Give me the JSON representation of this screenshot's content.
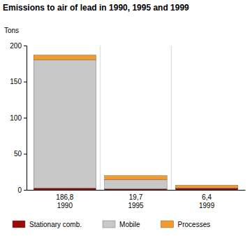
{
  "chart_data": {
    "type": "bar",
    "stacked": true,
    "title": "Emissions to air of lead in 1990, 1995 and 1999",
    "y_label": "Tons",
    "categories": [
      "1990",
      "1995",
      "1999"
    ],
    "total_labels": [
      "186,8",
      "19,7",
      "6,4"
    ],
    "series": [
      {
        "name": "Stationary comb.",
        "color": "#9b0a0a",
        "values": [
          2.5,
          1.5,
          2.0
        ]
      },
      {
        "name": "Mobile",
        "color": "#c8c8c8",
        "values": [
          177.5,
          12.5,
          0.5
        ]
      },
      {
        "name": "Processes",
        "color": "#f39a2c",
        "values": [
          6.8,
          5.7,
          3.9
        ]
      }
    ],
    "ylim": [
      0,
      200
    ],
    "yticks": [
      0,
      50,
      100,
      150,
      200
    ],
    "grid": false,
    "legend": "bottom"
  }
}
